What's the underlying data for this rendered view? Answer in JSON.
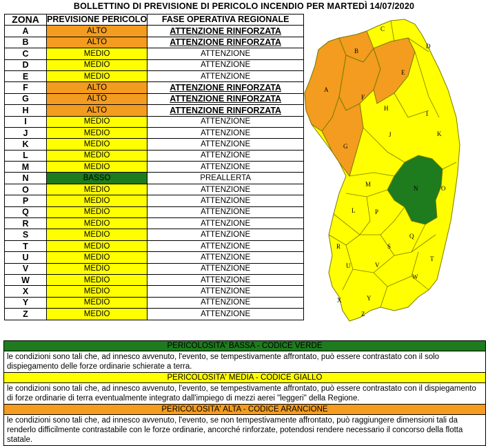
{
  "title": "BOLLETTINO DI PREVISIONE DI PERICOLO INCENDIO PER MARTEDÌ 14/07/2020",
  "table": {
    "headers": {
      "zona": "ZONA",
      "previsione": "PREVISIONE PERICOLO",
      "fase": "FASE OPERATIVA REGIONALE"
    },
    "rows": [
      {
        "zona": "A",
        "previsione": "ALTO",
        "fase": "ATTENZIONE RINFORZATA",
        "color": "#f39c1f",
        "emph": true
      },
      {
        "zona": "B",
        "previsione": "ALTO",
        "fase": "ATTENZIONE RINFORZATA",
        "color": "#f39c1f",
        "emph": true
      },
      {
        "zona": "C",
        "previsione": "MEDIO",
        "fase": "ATTENZIONE",
        "color": "#ffff00",
        "emph": false
      },
      {
        "zona": "D",
        "previsione": "MEDIO",
        "fase": "ATTENZIONE",
        "color": "#ffff00",
        "emph": false
      },
      {
        "zona": "E",
        "previsione": "MEDIO",
        "fase": "ATTENZIONE",
        "color": "#ffff00",
        "emph": false
      },
      {
        "zona": "F",
        "previsione": "ALTO",
        "fase": "ATTENZIONE RINFORZATA",
        "color": "#f39c1f",
        "emph": true
      },
      {
        "zona": "G",
        "previsione": "ALTO",
        "fase": "ATTENZIONE RINFORZATA",
        "color": "#f39c1f",
        "emph": true
      },
      {
        "zona": "H",
        "previsione": "ALTO",
        "fase": "ATTENZIONE RINFORZATA",
        "color": "#f39c1f",
        "emph": true
      },
      {
        "zona": "I",
        "previsione": "MEDIO",
        "fase": "ATTENZIONE",
        "color": "#ffff00",
        "emph": false
      },
      {
        "zona": "J",
        "previsione": "MEDIO",
        "fase": "ATTENZIONE",
        "color": "#ffff00",
        "emph": false
      },
      {
        "zona": "K",
        "previsione": "MEDIO",
        "fase": "ATTENZIONE",
        "color": "#ffff00",
        "emph": false
      },
      {
        "zona": "L",
        "previsione": "MEDIO",
        "fase": "ATTENZIONE",
        "color": "#ffff00",
        "emph": false
      },
      {
        "zona": "M",
        "previsione": "MEDIO",
        "fase": "ATTENZIONE",
        "color": "#ffff00",
        "emph": false
      },
      {
        "zona": "N",
        "previsione": "BASSO",
        "fase": "PREALLERTA",
        "color": "#1e7b1e",
        "emph": false
      },
      {
        "zona": "O",
        "previsione": "MEDIO",
        "fase": "ATTENZIONE",
        "color": "#ffff00",
        "emph": false
      },
      {
        "zona": "P",
        "previsione": "MEDIO",
        "fase": "ATTENZIONE",
        "color": "#ffff00",
        "emph": false
      },
      {
        "zona": "Q",
        "previsione": "MEDIO",
        "fase": "ATTENZIONE",
        "color": "#ffff00",
        "emph": false
      },
      {
        "zona": "R",
        "previsione": "MEDIO",
        "fase": "ATTENZIONE",
        "color": "#ffff00",
        "emph": false
      },
      {
        "zona": "S",
        "previsione": "MEDIO",
        "fase": "ATTENZIONE",
        "color": "#ffff00",
        "emph": false
      },
      {
        "zona": "T",
        "previsione": "MEDIO",
        "fase": "ATTENZIONE",
        "color": "#ffff00",
        "emph": false
      },
      {
        "zona": "U",
        "previsione": "MEDIO",
        "fase": "ATTENZIONE",
        "color": "#ffff00",
        "emph": false
      },
      {
        "zona": "V",
        "previsione": "MEDIO",
        "fase": "ATTENZIONE",
        "color": "#ffff00",
        "emph": false
      },
      {
        "zona": "W",
        "previsione": "MEDIO",
        "fase": "ATTENZIONE",
        "color": "#ffff00",
        "emph": false
      },
      {
        "zona": "X",
        "previsione": "MEDIO",
        "fase": "ATTENZIONE",
        "color": "#ffff00",
        "emph": false
      },
      {
        "zona": "Y",
        "previsione": "MEDIO",
        "fase": "ATTENZIONE",
        "color": "#ffff00",
        "emph": false
      },
      {
        "zona": "Z",
        "previsione": "MEDIO",
        "fase": "ATTENZIONE",
        "color": "#ffff00",
        "emph": false
      }
    ]
  },
  "map": {
    "colors": {
      "alto": "#f39c1f",
      "medio": "#ffff00",
      "basso": "#1e7b1e",
      "border": "#7a7a00"
    }
  },
  "legend": [
    {
      "heading": "PERICOLOSITA' BASSA - CODICE VERDE",
      "color": "#1e7b1e",
      "text": "le condizioni sono tali che, ad innesco avvenuto, l'evento, se tempestivamente affrontato, può essere contrastato con il solo dispiegamento delle forze ordinarie schierate a terra."
    },
    {
      "heading": "PERICOLOSITA' MEDIA - CODICE GIALLO",
      "color": "#ffff00",
      "text": "le condizioni sono tali che, ad innesco avvenuto, l'evento, se tempestivamente affrontato, può essere contrastato con il dispiegamento di forze ordinarie di terra eventualmente integrato dall'impiego di mezzi aerei \"leggeri\" della Regione."
    },
    {
      "heading": "PERICOLOSITA' ALTA - CODICE ARANCIONE",
      "color": "#f39c1f",
      "text": "le condizioni sono tali che, ad innesco avvenuto, l'evento, se non tempestivamente affrontato, può raggiungere dimensioni tali da renderlo difficilmente contrastabile con le forze ordinarie, ancorché rinforzate, potendosi rendere necessario il concorso della flotta statale."
    }
  ]
}
